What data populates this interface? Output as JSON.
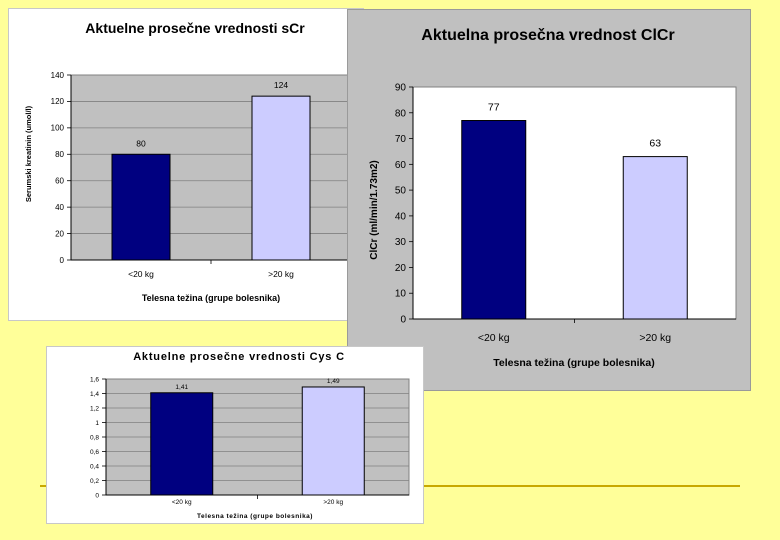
{
  "colors": {
    "slide_background": "#ffff99",
    "series_low": "#000080",
    "series_high": "#ccccff",
    "plot_area": "#c0c0c0",
    "gridline": "#808080",
    "accent_rule": "#c8a800"
  },
  "chart_data": [
    {
      "id": "scr",
      "type": "bar",
      "title": "Aktuelne prosečne vrednosti sCr",
      "xlabel": "Telesna težina (grupe bolesnika)",
      "ylabel": "Serumski kreatinin (umol/l)",
      "categories": [
        "<20 kg",
        ">20 kg"
      ],
      "values": [
        80,
        124
      ],
      "value_labels": [
        "80",
        "124"
      ],
      "ylim": [
        0,
        140
      ],
      "yticks": [
        0,
        20,
        40,
        60,
        80,
        100,
        120,
        140
      ],
      "grid": true,
      "legend": "none"
    },
    {
      "id": "clcr",
      "type": "bar",
      "title": "Aktuelna prosečna vrednost ClCr",
      "xlabel": "Telesna težina (grupe bolesnika)",
      "ylabel": "ClCr (ml/min/1.73m2)",
      "categories": [
        "<20 kg",
        ">20 kg"
      ],
      "values": [
        77,
        63
      ],
      "value_labels": [
        "77",
        "63"
      ],
      "ylim": [
        0,
        90
      ],
      "yticks": [
        0,
        10,
        20,
        30,
        40,
        50,
        60,
        70,
        80,
        90
      ],
      "grid": false,
      "legend": "none"
    },
    {
      "id": "cys",
      "type": "bar",
      "title": "Aktuelne prosečne vrednosti Cys C",
      "xlabel": "Telesna težina (grupe bolesnika)",
      "ylabel": "",
      "categories": [
        "<20 kg",
        ">20 kg"
      ],
      "values": [
        1.41,
        1.49
      ],
      "value_labels": [
        "1,41",
        "1,49"
      ],
      "ylim": [
        0,
        1.6
      ],
      "yticks": [
        0,
        0.2,
        0.4,
        0.6,
        0.8,
        1,
        1.2,
        1.4,
        1.6
      ],
      "ytick_labels": [
        "0",
        "0,2",
        "0,4",
        "0,6",
        "0,8",
        "1",
        "1,2",
        "1,4",
        "1,6"
      ],
      "grid": true,
      "legend": "none"
    }
  ]
}
